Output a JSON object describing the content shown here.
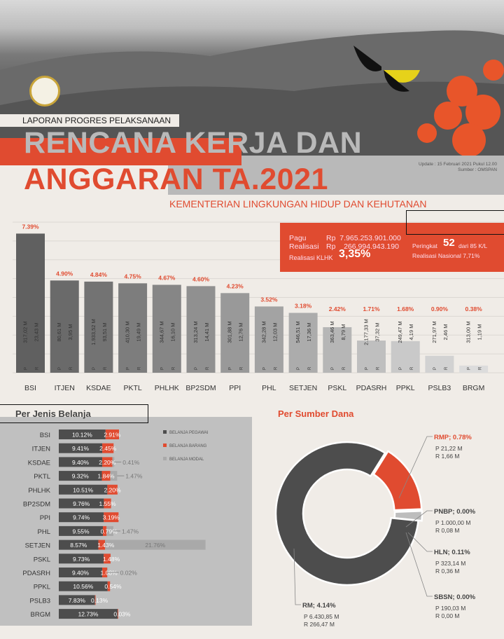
{
  "header": {
    "subtitle": "LAPORAN PROGRES PELAKSANAAN",
    "title_line1": "RENCANA KERJA DAN",
    "title_line2": "ANGGARAN TA.2021",
    "ministry": "KEMENTERIAN LINGKUNGAN HIDUP DAN KEHUTANAN",
    "update": "Update : 15 Februari 2021 Pukul 12.00",
    "source": "Sumber : OMSPAN"
  },
  "summary": {
    "pagu_label": "Pagu",
    "pagu_value": "Rp  7.965.253.901.000",
    "realisasi_label": "Realisasi",
    "realisasi_value": "Rp    266.994.943.190",
    "realisasi_klhk_label": "Realisasi  KLHK",
    "realisasi_klhk_value": "3,35%",
    "peringkat_label": "Peringkat",
    "peringkat_value": "52",
    "peringkat_suffix": "dari 85 K/L",
    "nasional": "Realisasi  Nasional 7,71%"
  },
  "colors": {
    "accent": "#e04b30",
    "dark": "#4d4d4d",
    "modal": "#a9a9a9"
  },
  "chart_data": [
    {
      "type": "bar",
      "ylim": [
        0,
        8
      ],
      "grid": true,
      "categories": [
        "BSI",
        "ITJEN",
        "KSDAE",
        "PKTL",
        "PHLHK",
        "BP2SDM",
        "PPI",
        "PHL",
        "SETJEN",
        "PSKL",
        "PDASRH",
        "PPKL",
        "PSLB3",
        "BRGM"
      ],
      "values": [
        7.39,
        4.9,
        4.84,
        4.75,
        4.67,
        4.6,
        4.23,
        3.52,
        3.18,
        2.42,
        1.71,
        1.68,
        0.9,
        0.38
      ],
      "data_labels": [
        "7.39%",
        "4.90%",
        "4.84%",
        "4.75%",
        "4.67%",
        "4.60%",
        "4.23%",
        "3.52%",
        "3.18%",
        "2.42%",
        "1.71%",
        "1.68%",
        "0.90%",
        "0.38%"
      ],
      "pagu": [
        "317,02 M",
        "80,61 M",
        "1.933,52 M",
        "410,30 M",
        "344,67 M",
        "313,24 M",
        "301,88 M",
        "342,28 M",
        "546,51 M",
        "363,46 M",
        "2.177,33 M",
        "249,47 M",
        "271,97 M",
        "313,00 M"
      ],
      "realisasi": [
        "23,43 M",
        "3,95 M",
        "93,51 M",
        "19,49 M",
        "16,10 M",
        "14,41 M",
        "12,76 M",
        "12,03 M",
        "17,36 M",
        "8,79 M",
        "37,32 M",
        "4,19 M",
        "2,46 M",
        "1,19 M"
      ],
      "p_letter": "P",
      "r_letter": "R"
    },
    {
      "type": "bar",
      "orientation": "horizontal",
      "stacked": true,
      "title": "Per Jenis Belanja",
      "legend_position": "right",
      "categories": [
        "BSI",
        "ITJEN",
        "KSDAE",
        "PKTL",
        "PHLHK",
        "BP2SDM",
        "PPI",
        "PHL",
        "SETJEN",
        "PSKL",
        "PDASRH",
        "PPKL",
        "PSLB3",
        "BRGM"
      ],
      "series": [
        {
          "name": "BELANJA PEGAWAI",
          "values": [
            10.12,
            9.41,
            9.4,
            9.32,
            10.51,
            9.76,
            9.74,
            9.55,
            8.57,
            9.73,
            9.4,
            10.56,
            7.83,
            12.73
          ]
        },
        {
          "name": "BELANJA BARANG",
          "values": [
            2.91,
            2.45,
            2.2,
            1.84,
            2.2,
            1.55,
            3.19,
            0.79,
            1.43,
            1.48,
            1.08,
            0.54,
            0.13,
            0.03
          ]
        },
        {
          "name": "BELANJA MODAL",
          "values": [
            null,
            null,
            0.41,
            1.47,
            null,
            null,
            null,
            1.47,
            21.76,
            null,
            0.02,
            null,
            null,
            null
          ]
        }
      ]
    },
    {
      "type": "pie",
      "title": "Per Sumber Dana",
      "slices": [
        {
          "name": "RMP",
          "label": "RMP; 0.78%",
          "value": 0.78,
          "p": "P 21,22  M",
          "r": "R   1,66  M"
        },
        {
          "name": "PNBP",
          "label": "PNBP; 0.00%",
          "value": 0.0,
          "p": "P 1.000,00  M",
          "r": "R          0,08  M"
        },
        {
          "name": "HLN",
          "label": "HLN; 0.11%",
          "value": 0.11,
          "p": "P 323,14  M",
          "r": "R    0,36  M"
        },
        {
          "name": "SBSN",
          "label": "SBSN; 0.00%",
          "value": 0.0,
          "p": "P 190,03  M",
          "r": "R    0,00  M"
        },
        {
          "name": "RM",
          "label": "RM; 4.14%",
          "value": 4.14,
          "p": "P 6.430,85  M",
          "r": "R   266,47  M"
        }
      ]
    }
  ]
}
